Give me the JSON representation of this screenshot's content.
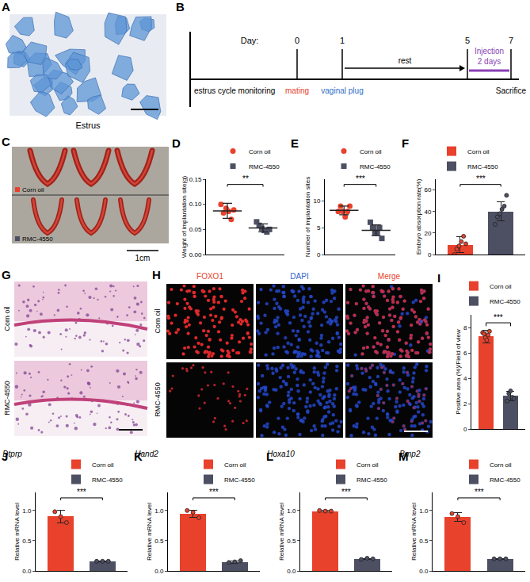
{
  "panels": {
    "A": {
      "letter": "A",
      "caption": "Estrus"
    },
    "B": {
      "letter": "B",
      "day_label": "Day:",
      "days": [
        "0",
        "1",
        "5",
        "7"
      ],
      "events": {
        "start": "estrus cycle monitoring",
        "day0": "mating",
        "day1": "vaginal plug",
        "rest": "rest",
        "injection": "Injection",
        "duration": "2 days",
        "end": "Sacrifice"
      },
      "colors": {
        "day0": "#e8412c",
        "day1": "#2f6fc8",
        "injection": "#8a3fb5"
      }
    },
    "C": {
      "letter": "C",
      "rows": [
        "Corn oil",
        "RMC-4550"
      ],
      "row_colors": [
        "#e8412c",
        "#4d4f63"
      ],
      "scale": "1cm"
    },
    "G": {
      "letter": "G",
      "rows": [
        "Corn oil",
        "RMC-4550"
      ]
    },
    "H": {
      "letter": "H",
      "columns": [
        "FOXO1",
        "DAPI",
        "Merge"
      ],
      "column_colors": [
        "#e8412c",
        "#2f5fd0",
        "#e8412c"
      ],
      "rows": [
        "Corn oil",
        "RMC-4550"
      ]
    }
  },
  "chart_data": [
    {
      "panel": "D",
      "type": "scatter",
      "y_label": "Weight of implantation site(g)",
      "ylim": [
        0,
        0.15
      ],
      "yticks": [
        {
          "value": 0,
          "label": "0.00"
        },
        {
          "value": 0.05,
          "label": "0.05"
        },
        {
          "value": 0.1,
          "label": "0.10"
        },
        {
          "value": 0.15,
          "label": "0.15"
        }
      ],
      "grid": false,
      "legend": "top right",
      "tick_labels": "y",
      "significance": "**",
      "series": [
        {
          "name": "Corn oil",
          "color": "#e8412c",
          "marker": "circle",
          "values": [
            0.1,
            0.083,
            0.092,
            0.086,
            0.07,
            0.089
          ],
          "mean": 0.087,
          "error": 0.015
        },
        {
          "name": "RMC-4550",
          "color": "#4d4f63",
          "marker": "square",
          "values": [
            0.065,
            0.058,
            0.052,
            0.048,
            0.045,
            0.05
          ],
          "mean": 0.053,
          "error": 0.008
        }
      ]
    },
    {
      "panel": "E",
      "type": "scatter",
      "y_label": "Number of implantation sites",
      "ylim": [
        0,
        14
      ],
      "yticks": [
        0,
        5,
        10
      ],
      "grid": false,
      "legend": "top right",
      "tick_labels": "y",
      "significance": "***",
      "series": [
        {
          "name": "Corn oil",
          "color": "#e8412c",
          "marker": "circle",
          "values": [
            8,
            9,
            8,
            7,
            8,
            9
          ],
          "mean": 8.2,
          "error": 0.8
        },
        {
          "name": "RMC-4550",
          "color": "#4d4f63",
          "marker": "square",
          "values": [
            6,
            5,
            4,
            4,
            5,
            3
          ],
          "mean": 4.5,
          "error": 1.0
        }
      ]
    },
    {
      "panel": "F",
      "type": "bar",
      "y_label": "Embryo absorption rate(%)",
      "ylim": [
        0,
        70
      ],
      "yticks": [
        0,
        20,
        40,
        60
      ],
      "grid": false,
      "legend": "top left",
      "tick_labels": "y",
      "significance": "***",
      "series": [
        {
          "name": "Corn oil",
          "color": "#e8412c",
          "marker": "circle",
          "values": [
            0,
            5,
            8,
            12,
            17,
            10
          ],
          "mean": 9,
          "error": 7.5
        },
        {
          "name": "RMC-4550",
          "color": "#4d4f63",
          "marker": "circle",
          "values": [
            28,
            35,
            38,
            42,
            45,
            55
          ],
          "mean": 40,
          "error": 9
        }
      ]
    },
    {
      "panel": "I",
      "type": "bar",
      "y_label": "Positive area (%)/Field of view",
      "ylim": [
        0,
        9
      ],
      "yticks": [
        0,
        2,
        4,
        6,
        8
      ],
      "grid": false,
      "legend": "top right",
      "tick_labels": "y",
      "significance": "***",
      "series": [
        {
          "name": "Corn oil",
          "color": "#e8412c",
          "marker": "circle",
          "values": [
            7.6,
            7.5,
            7.2,
            7.0,
            7.4,
            7.7
          ],
          "mean": 7.3,
          "error": 0.5
        },
        {
          "name": "RMC-4550",
          "color": "#4d4f63",
          "marker": "circle",
          "values": [
            2.2,
            2.8,
            3.0,
            2.5,
            2.4
          ],
          "mean": 2.6,
          "error": 0.4
        }
      ]
    },
    {
      "panel": "J",
      "type": "bar",
      "title": "Dtprp",
      "y_label": "Relative mRNA level",
      "ylim": [
        0,
        1.3
      ],
      "yticks": [
        {
          "value": 0,
          "label": "0.0"
        },
        {
          "value": 0.5,
          "label": "0.5"
        },
        {
          "value": 1,
          "label": "1.0"
        }
      ],
      "grid": false,
      "legend": "top right",
      "tick_labels": "y",
      "significance": "***",
      "series": [
        {
          "name": "Corn oil",
          "color": "#e8412c",
          "marker": "circle",
          "values": [
            0.98,
            0.9,
            0.8
          ],
          "mean": 0.9,
          "error": 0.1
        },
        {
          "name": "RMC-4550",
          "color": "#4d4f63",
          "marker": "circle",
          "values": [
            0.16,
            0.16,
            0.16
          ],
          "mean": 0.16,
          "error": 0.01
        }
      ]
    },
    {
      "panel": "K",
      "type": "bar",
      "title": "Hand2",
      "y_label": "Relative mRNA level",
      "ylim": [
        0,
        1.3
      ],
      "yticks": [
        {
          "value": 0,
          "label": "0.0"
        },
        {
          "value": 0.5,
          "label": "0.5"
        },
        {
          "value": 1,
          "label": "1.0"
        }
      ],
      "grid": false,
      "legend": "top right",
      "tick_labels": "y",
      "significance": "***",
      "series": [
        {
          "name": "Corn oil",
          "color": "#e8412c",
          "marker": "circle",
          "values": [
            1.0,
            0.97,
            0.88
          ],
          "mean": 0.95,
          "error": 0.06
        },
        {
          "name": "RMC-4550",
          "color": "#4d4f63",
          "marker": "circle",
          "values": [
            0.14,
            0.15,
            0.17
          ],
          "mean": 0.15,
          "error": 0.02
        }
      ]
    },
    {
      "panel": "L",
      "type": "bar",
      "title": "Hoxa10",
      "y_label": "Relative mRNA level",
      "ylim": [
        0,
        1.3
      ],
      "yticks": [
        {
          "value": 0,
          "label": "0.0"
        },
        {
          "value": 0.5,
          "label": "0.5"
        },
        {
          "value": 1,
          "label": "1.0"
        }
      ],
      "grid": false,
      "legend": "top right",
      "tick_labels": "y",
      "significance": "***",
      "series": [
        {
          "name": "Corn oil",
          "color": "#e8412c",
          "marker": "circle",
          "values": [
            1.0,
            0.99,
            0.99
          ],
          "mean": 0.99,
          "error": 0.01
        },
        {
          "name": "RMC-4550",
          "color": "#4d4f63",
          "marker": "circle",
          "values": [
            0.19,
            0.21,
            0.2
          ],
          "mean": 0.2,
          "error": 0.01
        }
      ]
    },
    {
      "panel": "M",
      "type": "bar",
      "title": "Bmp2",
      "y_label": "Relative mRNA level",
      "ylim": [
        0,
        1.3
      ],
      "yticks": [
        {
          "value": 0,
          "label": "0.0"
        },
        {
          "value": 0.5,
          "label": "0.5"
        },
        {
          "value": 1,
          "label": "1.0"
        }
      ],
      "grid": false,
      "legend": "top right",
      "tick_labels": "y",
      "significance": "***",
      "series": [
        {
          "name": "Corn oil",
          "color": "#e8412c",
          "marker": "circle",
          "values": [
            0.95,
            0.9,
            0.8
          ],
          "mean": 0.89,
          "error": 0.07
        },
        {
          "name": "RMC-4550",
          "color": "#4d4f63",
          "marker": "circle",
          "values": [
            0.2,
            0.2,
            0.2
          ],
          "mean": 0.2,
          "error": 0.01
        }
      ]
    }
  ]
}
